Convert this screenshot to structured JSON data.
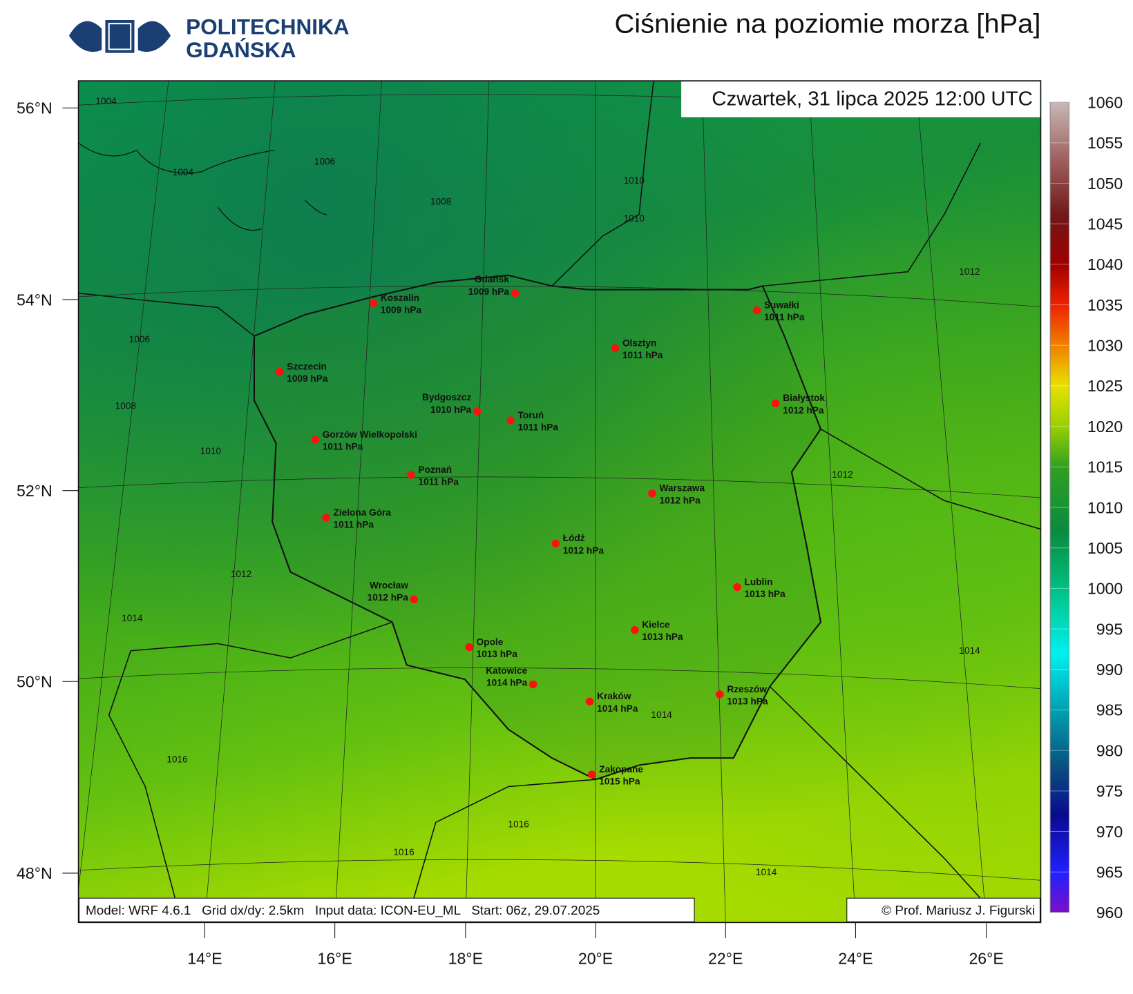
{
  "header": {
    "logo_line1": "POLITECHNIKA",
    "logo_line2": "GDAŃSKA",
    "title": "Ciśnienie na poziomie morza [hPa]"
  },
  "map": {
    "valid_time": "Czwartek, 31 lipca 2025 12:00 UTC",
    "lat_labels": [
      "56°N",
      "54°N",
      "52°N",
      "50°N",
      "48°N"
    ],
    "lon_labels": [
      "14°E",
      "16°E",
      "18°E",
      "20°E",
      "22°E",
      "24°E",
      "26°E"
    ],
    "contour_labels": [
      1004,
      1004,
      1006,
      1008,
      1010,
      1010,
      1012,
      1006,
      1008,
      1010,
      1012,
      1012,
      1014,
      1014,
      1014,
      1016,
      1016,
      1016,
      1014
    ],
    "cities": [
      {
        "name": "Koszalin",
        "label": "1009 hPa"
      },
      {
        "name": "Gdańsk",
        "label": "1009 hPa"
      },
      {
        "name": "Suwałki",
        "label": "1011 hPa"
      },
      {
        "name": "Olsztyn",
        "label": "1011 hPa"
      },
      {
        "name": "Szczecin",
        "label": "1009 hPa"
      },
      {
        "name": "Białystok",
        "label": "1012 hPa"
      },
      {
        "name": "Bydgoszcz",
        "label": "1010 hPa"
      },
      {
        "name": "Toruń",
        "label": "1011 hPa"
      },
      {
        "name": "Gorzów Wielkopolski",
        "label": "1011 hPa"
      },
      {
        "name": "Poznań",
        "label": "1011 hPa"
      },
      {
        "name": "Warszawa",
        "label": "1012 hPa"
      },
      {
        "name": "Zielona Góra",
        "label": "1011 hPa"
      },
      {
        "name": "Łódź",
        "label": "1012 hPa"
      },
      {
        "name": "Lublin",
        "label": "1013 hPa"
      },
      {
        "name": "Wrocław",
        "label": "1012 hPa"
      },
      {
        "name": "Kielce",
        "label": "1013 hPa"
      },
      {
        "name": "Opole",
        "label": "1013 hPa"
      },
      {
        "name": "Katowice",
        "label": "1014 hPa"
      },
      {
        "name": "Kraków",
        "label": "1014 hPa"
      },
      {
        "name": "Rzeszów",
        "label": "1013 hPa"
      },
      {
        "name": "Zakopane",
        "label": "1015 hPa"
      }
    ],
    "footer_model": "Model: WRF 4.6.1   Grid dx/dy: 2.5km   Input data: ICON-EU_ML   Start: 06z, 29.07.2025",
    "footer_author": "© Prof. Mariusz J. Figurski"
  },
  "colorbar": {
    "lim": [
      960,
      1060
    ],
    "ticks": [
      960,
      965,
      970,
      975,
      980,
      985,
      990,
      995,
      1000,
      1005,
      1010,
      1015,
      1020,
      1025,
      1030,
      1035,
      1040,
      1045,
      1050,
      1055,
      1060
    ]
  }
}
